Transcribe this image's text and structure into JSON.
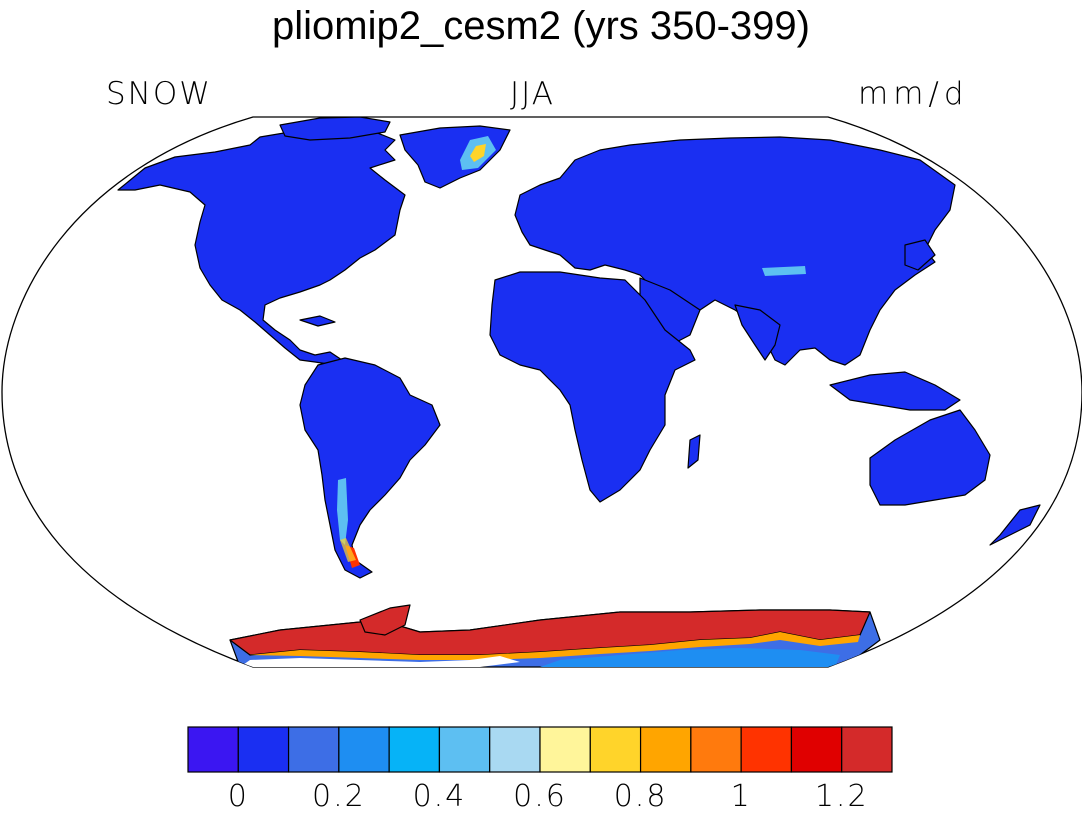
{
  "title": "pliomip2_cesm2 (yrs 350-399)",
  "labels": {
    "left": "SNOW",
    "center": "JJA",
    "right": "mm/d"
  },
  "projection": "Robinson",
  "colorbar": {
    "colors": [
      "#3b16f2",
      "#1a2ff2",
      "#3d6ee6",
      "#1e8ef2",
      "#06b3f7",
      "#5dbff2",
      "#a9d9f2",
      "#fff59a",
      "#ffd42a",
      "#ffa500",
      "#ff7a0d",
      "#ff3300",
      "#e00000",
      "#d42a2a"
    ],
    "tick_labels": [
      "0",
      "0.2",
      "0.4",
      "0.6",
      "0.8",
      "1",
      "1.2"
    ]
  },
  "colors": {
    "land": "#1a2ff2",
    "ocean": "#ffffff",
    "coast": "#000000"
  }
}
